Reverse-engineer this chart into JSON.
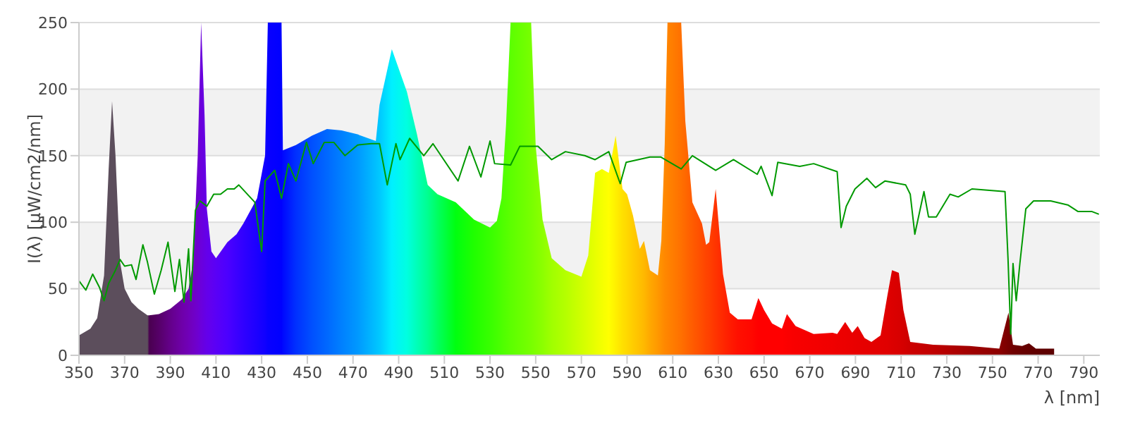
{
  "chart_data": {
    "type": "area",
    "xlabel": "λ [nm]",
    "ylabel": "I(λ)  [µW/cm2/nm]",
    "xlim": [
      350,
      797
    ],
    "xticks": [
      350,
      370,
      390,
      410,
      430,
      450,
      470,
      490,
      510,
      530,
      550,
      570,
      590,
      610,
      630,
      650,
      670,
      690,
      710,
      730,
      750,
      770,
      790
    ],
    "ylim": [
      0,
      250
    ],
    "yticks": [
      0,
      50,
      100,
      150,
      200,
      250
    ],
    "grid": "y",
    "marker": "none",
    "series": [
      {
        "x": [
          350,
          355,
          358,
          361,
          363,
          364.5,
          366,
          368,
          370,
          373,
          376,
          380,
          380.8,
          385,
          390,
          395,
          398,
          400,
          402,
          403.5,
          405,
          406,
          408,
          410,
          415,
          419,
          422,
          428,
          431.5,
          432.7,
          438.7,
          439.3,
          445,
          452,
          458.6,
          465,
          472,
          480,
          481.6,
          487,
          493.6,
          498,
          502.7,
          507,
          515,
          523,
          530,
          533,
          535,
          537,
          539,
          548,
          550,
          553,
          557,
          563,
          570,
          573,
          576,
          579,
          582,
          585,
          588,
          590,
          592.6,
          595.6,
          597.4,
          600,
          603.5,
          605,
          606.5,
          607.7,
          613.7,
          615.5,
          618.6,
          622.8,
          624.6,
          626,
          628.8,
          632,
          635,
          638.5,
          644.5,
          647.5,
          650,
          653.5,
          657.8,
          660,
          663.8,
          671.7,
          680,
          682,
          685.5,
          688.6,
          691,
          694,
          697,
          701,
          704,
          706,
          709,
          711,
          714,
          724,
          740,
          753,
          757,
          759,
          763,
          766,
          769,
          777
        ],
        "values": [
          15,
          20,
          28,
          60,
          140,
          191,
          150,
          70,
          50,
          40,
          35,
          30,
          30,
          31,
          35,
          42,
          50,
          70,
          150,
          250,
          180,
          110,
          78,
          73,
          85,
          91,
          99,
          118,
          150,
          250,
          250,
          154,
          158,
          165,
          170,
          169,
          166,
          161,
          188,
          230,
          198,
          166,
          128,
          121,
          115,
          102,
          96,
          101,
          118,
          173,
          250,
          250,
          157,
          102,
          73,
          64,
          59,
          75,
          137,
          140,
          137,
          165,
          125,
          121,
          105,
          80,
          86,
          64,
          60,
          86,
          159,
          250,
          250,
          176,
          115,
          99,
          83,
          85,
          125,
          61,
          32,
          27,
          27,
          43,
          34,
          24,
          20,
          31,
          22,
          16,
          17,
          16,
          25,
          17,
          22,
          13,
          10,
          15,
          45,
          64,
          62,
          34,
          10,
          8,
          7,
          5,
          32,
          8,
          7,
          9,
          5,
          5
        ],
        "colors": [
          "#5c4e5c",
          "#5c4e5c",
          "#5c4e5c",
          "#5c4e5c",
          "#5c4e5c",
          "#5c4e5c",
          "#5c4e5c",
          "#5c4e5c",
          "#5c4e5c",
          "#5c4e5c",
          "#5c4e5c",
          "#5c4e5c",
          "#4a0050",
          "#560068",
          "#64008a",
          "#6e00a8",
          "#7000b8",
          "#7000c4",
          "#6e00d0",
          "#6a00dc",
          "#6600e4",
          "#6400ea",
          "#6000f0",
          "#5a00f6",
          "#4c00ff",
          "#3c00ff",
          "#3000ff",
          "#1c00ff",
          "#1000ff",
          "#0800ff",
          "#0000ff",
          "#0008ff",
          "#0030ff",
          "#0050ff",
          "#0068ff",
          "#0080ff",
          "#0098ff",
          "#00c0ff",
          "#00c8ff",
          "#00f0ff",
          "#00ffe0",
          "#00ffb8",
          "#00ff90",
          "#00ff60",
          "#00ff10",
          "#20ff00",
          "#38ff00",
          "#44ff00",
          "#4cff00",
          "#54ff00",
          "#5cff00",
          "#78ff00",
          "#80ff00",
          "#8cff00",
          "#a0ff00",
          "#b4ff00",
          "#d0ff00",
          "#dcff00",
          "#e8ff00",
          "#f4ff00",
          "#ffff00",
          "#fff000",
          "#ffe000",
          "#ffd800",
          "#ffcc00",
          "#ffc000",
          "#ffb800",
          "#ffa800",
          "#ff9800",
          "#ff9000",
          "#ff8800",
          "#ff8400",
          "#ff7000",
          "#ff6800",
          "#ff5c00",
          "#ff4c00",
          "#ff4400",
          "#ff4000",
          "#ff3400",
          "#ff2800",
          "#ff1c00",
          "#ff1000",
          "#ff0800",
          "#ff0000",
          "#ff0000",
          "#ff0000",
          "#ff0000",
          "#fc0000",
          "#f80000",
          "#f40000",
          "#f00000",
          "#ee0000",
          "#ec0000",
          "#ea0000",
          "#e80000",
          "#e60000",
          "#e40000",
          "#e20000",
          "#e00000",
          "#dc0000",
          "#d80000",
          "#d40000",
          "#cc0000",
          "#c00000",
          "#a00000",
          "#8c0000",
          "#780000",
          "#700000",
          "#680000",
          "#640000",
          "#600000",
          "#5c0000"
        ]
      },
      {
        "type": "line",
        "color": "#009900",
        "x": [
          350,
          353,
          356,
          359,
          361,
          363,
          366,
          368,
          370,
          373,
          375,
          378,
          380,
          383,
          386,
          389,
          392,
          394,
          396,
          398,
          399,
          401,
          403,
          406,
          409,
          412,
          415,
          418,
          420,
          427,
          430,
          431.5,
          435.7,
          438.7,
          441.7,
          445,
          449.6,
          452.6,
          457.4,
          461.6,
          466.5,
          472,
          478,
          481.6,
          485,
          488.8,
          490.6,
          494.8,
          501,
          505,
          516,
          521,
          526,
          530,
          532,
          539,
          543,
          551,
          557,
          563,
          571.5,
          576,
          582,
          587,
          589.6,
          600,
          604.7,
          613.7,
          618.6,
          628.8,
          636.6,
          647,
          648.7,
          653.5,
          656,
          665.6,
          671.7,
          682,
          683.7,
          686,
          689.8,
          695,
          698.8,
          703,
          712,
          714,
          716,
          720,
          722,
          725.4,
          731.4,
          735,
          741,
          755.5,
          756.8,
          758,
          759,
          760.4,
          762,
          764.6,
          768,
          775.5,
          783,
          787.5,
          793.6,
          796.6
        ],
        "values": [
          56,
          49,
          61,
          51,
          41,
          54,
          64,
          72,
          67,
          68,
          57,
          83,
          70,
          46,
          64,
          85,
          48,
          72,
          40,
          80,
          41,
          109,
          116,
          112,
          121,
          121,
          125,
          125,
          128,
          115,
          78,
          131,
          139,
          118,
          144,
          131,
          160,
          144,
          160,
          160,
          150,
          158,
          159,
          159,
          128,
          159,
          147,
          163,
          150,
          159,
          131,
          157,
          134,
          161,
          144,
          143,
          157,
          157,
          147,
          153,
          150,
          147,
          153,
          129,
          145,
          149,
          149,
          140,
          150,
          139,
          147,
          136,
          142,
          120,
          145,
          142,
          144,
          138,
          96,
          112,
          125,
          133,
          126,
          131,
          128,
          121,
          91,
          123,
          104,
          104,
          121,
          119,
          125,
          123,
          73,
          16,
          69,
          41,
          69,
          110,
          116,
          116,
          113,
          108,
          108,
          106
        ]
      }
    ]
  }
}
